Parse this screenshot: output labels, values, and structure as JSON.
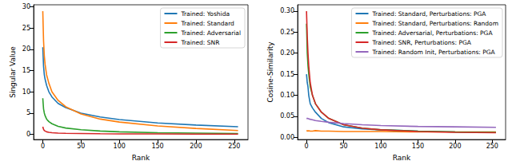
{
  "chart_data": [
    {
      "type": "line",
      "x_label": "Rank",
      "y_label": "Singular Value",
      "x": [
        0,
        1,
        2,
        3,
        5,
        8,
        12,
        20,
        30,
        50,
        75,
        100,
        150,
        200,
        255
      ],
      "xlim": [
        -12,
        268
      ],
      "xticks": [
        0,
        50,
        100,
        150,
        200,
        250
      ],
      "ylim": [
        -1.2,
        30.5
      ],
      "yticks": [
        0,
        5,
        10,
        15,
        20,
        25,
        30
      ],
      "grid": false,
      "legend": "upper right",
      "series": [
        {
          "name": "Trained: Yoshida",
          "color": "#1f77b4",
          "values": [
            20.5,
            16,
            14,
            13,
            11.5,
            10,
            8.8,
            7.3,
            6.3,
            5,
            4.1,
            3.5,
            2.7,
            2.2,
            1.8
          ]
        },
        {
          "name": "Trained: Standard",
          "color": "#ff7f0e",
          "values": [
            29,
            22,
            18.5,
            16.5,
            14,
            12,
            10,
            8,
            6.5,
            4.8,
            3.6,
            2.9,
            2,
            1.4,
            0.9
          ]
        },
        {
          "name": "Trained: Adversarial",
          "color": "#2ca02c",
          "values": [
            8.5,
            6,
            5,
            4.4,
            3.6,
            3,
            2.5,
            1.9,
            1.5,
            1.1,
            0.8,
            0.6,
            0.4,
            0.3,
            0.2
          ]
        },
        {
          "name": "Trained: SNR",
          "color": "#d62728",
          "values": [
            1.8,
            1.2,
            0.9,
            0.8,
            0.6,
            0.5,
            0.4,
            0.3,
            0.25,
            0.2,
            0.15,
            0.12,
            0.1,
            0.08,
            0.06
          ]
        }
      ]
    },
    {
      "type": "line",
      "x_label": "Rank",
      "y_label": "Cosine-Similarity",
      "x": [
        0,
        1,
        2,
        3,
        5,
        8,
        12,
        20,
        30,
        50,
        75,
        100,
        150,
        200,
        255
      ],
      "xlim": [
        -12,
        268
      ],
      "xticks": [
        0,
        50,
        100,
        150,
        200,
        250
      ],
      "ylim": [
        -0.005,
        0.315
      ],
      "yticks": [
        {
          "value": 0,
          "label": "0.00"
        },
        {
          "value": 0.05,
          "label": "0.05"
        },
        {
          "value": 0.1,
          "label": "0.10"
        },
        {
          "value": 0.15,
          "label": "0.15"
        },
        {
          "value": 0.2,
          "label": "0.20"
        },
        {
          "value": 0.25,
          "label": "0.25"
        },
        {
          "value": 0.3,
          "label": "0.30"
        }
      ],
      "grid": false,
      "legend": "upper right",
      "series": [
        {
          "name": "Trained: Standard, Perturbations: PGA",
          "color": "#1f77b4",
          "values": [
            0.15,
            0.13,
            0.12,
            0.1,
            0.08,
            0.07,
            0.06,
            0.045,
            0.035,
            0.025,
            0.02,
            0.018,
            0.015,
            0.013,
            0.012
          ]
        },
        {
          "name": "Trained: Standard, Perturbations: Random",
          "color": "#ff7f0e",
          "values": [
            0.015,
            0.016,
            0.015,
            0.016,
            0.015,
            0.015,
            0.016,
            0.015,
            0.015,
            0.014,
            0.014,
            0.014,
            0.013,
            0.013,
            0.013
          ]
        },
        {
          "name": "Trained: Adversarial, Perturbations: PGA",
          "color": "#2ca02c",
          "values": [
            0.27,
            0.2,
            0.17,
            0.15,
            0.12,
            0.1,
            0.08,
            0.06,
            0.045,
            0.03,
            0.022,
            0.018,
            0.015,
            0.013,
            0.012
          ]
        },
        {
          "name": "Trained: SNR, Perturbations: PGA",
          "color": "#d62728",
          "values": [
            0.3,
            0.24,
            0.2,
            0.17,
            0.13,
            0.1,
            0.08,
            0.06,
            0.045,
            0.03,
            0.022,
            0.018,
            0.014,
            0.012,
            0.011
          ]
        },
        {
          "name": "Trained: Random Init, Perturbations: PGA",
          "color": "#9467bd",
          "values": [
            0.045,
            0.045,
            0.045,
            0.044,
            0.043,
            0.042,
            0.04,
            0.038,
            0.036,
            0.033,
            0.03,
            0.028,
            0.026,
            0.025,
            0.024
          ]
        }
      ]
    }
  ]
}
